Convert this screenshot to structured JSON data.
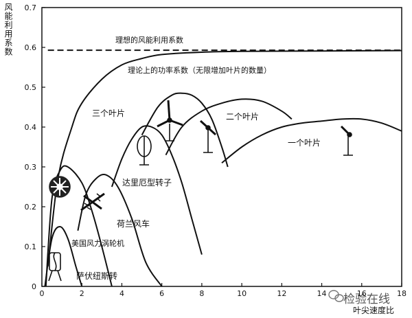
{
  "chart_data": {
    "type": "line",
    "ylabel": "风能利用系数",
    "xlabel": "叶尖速度比",
    "xlim": [
      0,
      18
    ],
    "ylim": [
      0,
      0.7
    ],
    "x_ticks": [
      0,
      2,
      4,
      6,
      8,
      10,
      12,
      14,
      16,
      18
    ],
    "y_ticks": [
      0,
      0.1,
      0.2,
      0.3,
      0.4,
      0.5,
      0.6,
      0.7
    ],
    "series": [
      {
        "name": "理想的风能利用系数",
        "style": "dashed",
        "x": [
          0.3,
          18
        ],
        "y": [
          0.593,
          0.593
        ]
      },
      {
        "name": "理论上的功率系数（无限增加叶片的数量）",
        "style": "solid",
        "x": [
          0.3,
          0.8,
          1.5,
          2.0,
          3.0,
          4.0,
          5.0,
          6.0,
          8.0,
          10.0,
          14.0,
          18.0
        ],
        "y": [
          0.05,
          0.27,
          0.4,
          0.46,
          0.52,
          0.556,
          0.572,
          0.582,
          0.588,
          0.59,
          0.591,
          0.592
        ]
      },
      {
        "name": "萨伏纽斯转",
        "style": "solid",
        "x": [
          0.15,
          0.5,
          0.9,
          1.3,
          1.7,
          2.0
        ],
        "y": [
          0.0,
          0.12,
          0.15,
          0.12,
          0.05,
          0.0
        ]
      },
      {
        "name": "美国风力涡轮机",
        "style": "solid",
        "x": [
          0.2,
          0.5,
          0.9,
          1.3,
          2.0,
          2.5,
          3.0,
          3.5
        ],
        "y": [
          0.0,
          0.22,
          0.29,
          0.3,
          0.26,
          0.19,
          0.1,
          0.0
        ]
      },
      {
        "name": "荷兰风车",
        "style": "solid",
        "x": [
          1.8,
          2.2,
          2.7,
          3.2,
          3.8,
          4.5,
          5.2,
          6.0
        ],
        "y": [
          0.14,
          0.23,
          0.27,
          0.28,
          0.25,
          0.17,
          0.06,
          0.0
        ]
      },
      {
        "name": "达里厄型转子",
        "style": "solid",
        "x": [
          3.5,
          4.0,
          4.5,
          5.0,
          5.5,
          6.0,
          6.5,
          7.0,
          7.5,
          8.0
        ],
        "y": [
          0.25,
          0.32,
          0.37,
          0.4,
          0.4,
          0.38,
          0.33,
          0.26,
          0.17,
          0.08
        ]
      },
      {
        "name": "三个叶片",
        "style": "solid",
        "x": [
          5.0,
          5.8,
          6.5,
          7.0,
          7.5,
          8.0,
          8.5,
          9.0,
          9.3
        ],
        "y": [
          0.38,
          0.45,
          0.48,
          0.485,
          0.48,
          0.46,
          0.42,
          0.35,
          0.3
        ]
      },
      {
        "name": "二个叶片",
        "style": "solid",
        "x": [
          6.2,
          7.0,
          8.0,
          9.0,
          10.0,
          11.0,
          12.0,
          12.5
        ],
        "y": [
          0.33,
          0.4,
          0.44,
          0.46,
          0.47,
          0.465,
          0.44,
          0.42
        ]
      },
      {
        "name": "一个叶片",
        "style": "solid",
        "x": [
          9.0,
          10.0,
          11.0,
          12.0,
          13.0,
          14.0,
          15.0,
          16.0,
          17.0,
          18.0
        ],
        "y": [
          0.31,
          0.35,
          0.38,
          0.4,
          0.41,
          0.415,
          0.42,
          0.42,
          0.41,
          0.39
        ]
      }
    ],
    "annotations": [
      {
        "text": "理想的风能利用系数"
      },
      {
        "text": "理论上的功率系数（无限增加叶片的数量）"
      },
      {
        "text": "三个叶片"
      },
      {
        "text": "二个叶片"
      },
      {
        "text": "一个叶片"
      },
      {
        "text": "达里厄型转子"
      },
      {
        "text": "荷兰风车"
      },
      {
        "text": "美国风力涡轮机"
      },
      {
        "text": "萨伏纽斯转"
      }
    ]
  },
  "watermark": "检验在线",
  "icons": [
    "wechat-icon",
    "savonius-rotor-icon",
    "american-multiblade-turbine-icon",
    "dutch-windmill-icon",
    "darrieus-rotor-icon",
    "three-blade-turbine-icon",
    "two-blade-turbine-icon",
    "one-blade-turbine-icon"
  ]
}
